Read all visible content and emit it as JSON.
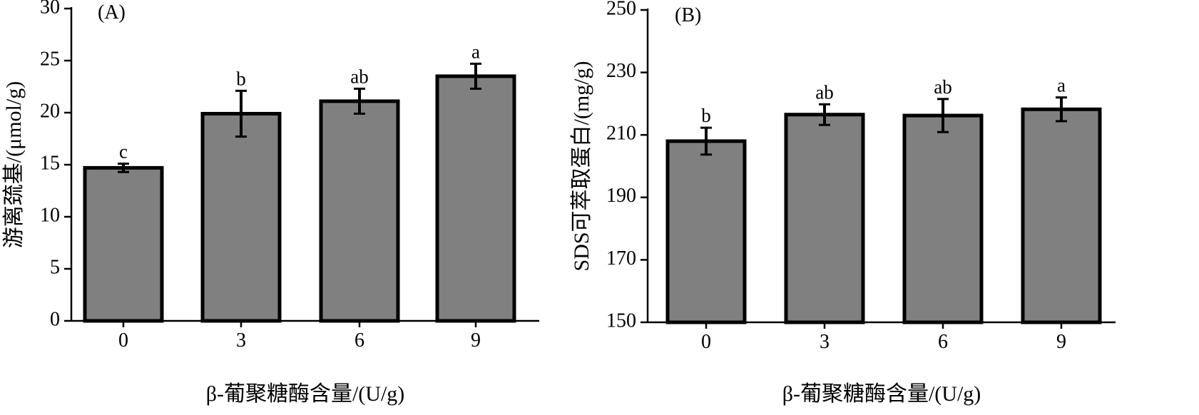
{
  "chart_data": [
    {
      "type": "bar",
      "panel_label": "(A)",
      "categories": [
        "0",
        "3",
        "6",
        "9"
      ],
      "values": [
        14.7,
        19.9,
        21.1,
        23.5
      ],
      "errors": [
        0.4,
        2.2,
        1.2,
        1.2
      ],
      "significance": [
        "c",
        "b",
        "ab",
        "a"
      ],
      "xlabel": "β-葡聚糖酶含量/(U/g)",
      "ylabel": "游离巯基/(μmol/g)",
      "ylim": [
        0,
        30
      ],
      "yticks": [
        0,
        5,
        10,
        15,
        20,
        25,
        30
      ],
      "bar_color": "#808080",
      "grid": false
    },
    {
      "type": "bar",
      "panel_label": "(B)",
      "categories": [
        "0",
        "3",
        "6",
        "9"
      ],
      "values": [
        208,
        216.5,
        216.2,
        218.2
      ],
      "errors": [
        4.3,
        3.3,
        5.3,
        3.8
      ],
      "significance": [
        "b",
        "ab",
        "ab",
        "a"
      ],
      "xlabel": "β-葡聚糖酶含量/(U/g)",
      "ylabel": "SDS可萃取蛋白/(mg/g)",
      "ylim": [
        150,
        250
      ],
      "yticks": [
        150,
        170,
        190,
        210,
        230,
        250
      ],
      "bar_color": "#808080",
      "grid": false
    }
  ]
}
